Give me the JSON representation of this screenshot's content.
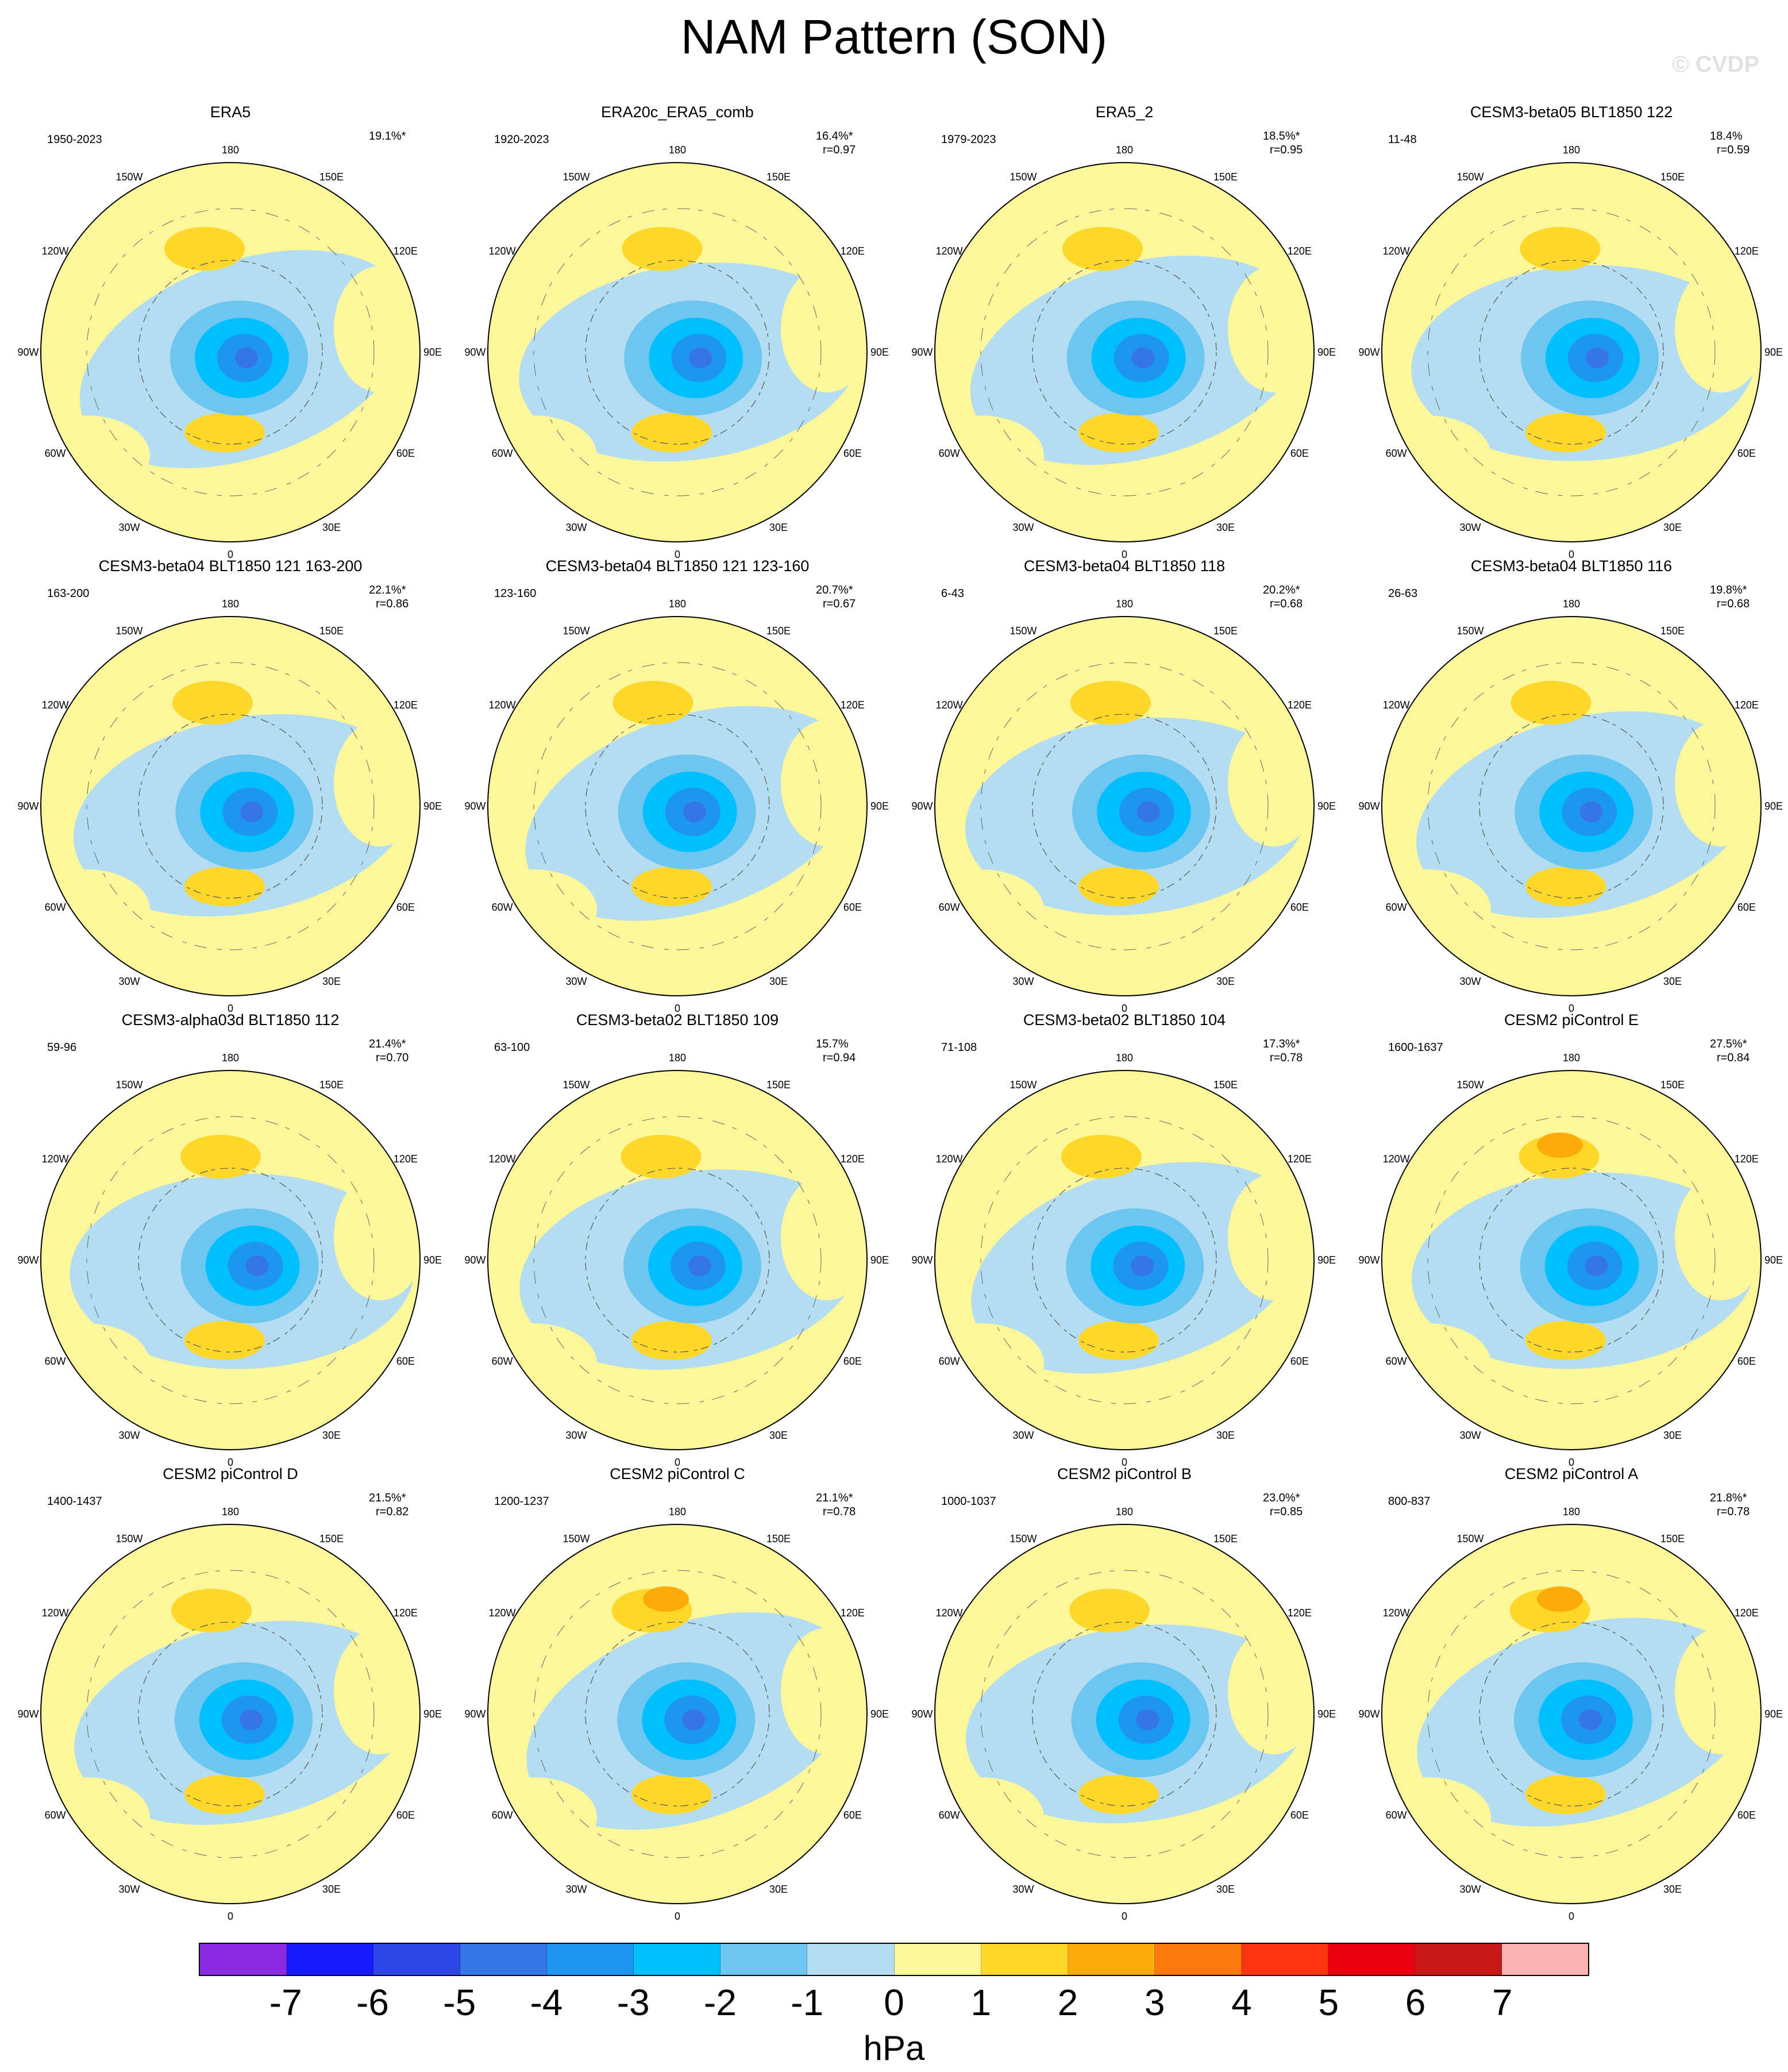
{
  "title": "NAM Pattern (SON)",
  "watermark": "© CVDP",
  "longitude_labels": [
    "180",
    "150E",
    "120E",
    "90E",
    "60E",
    "30E",
    "0",
    "30W",
    "60W",
    "90W",
    "120W",
    "150W"
  ],
  "panels": [
    {
      "title": "ERA5",
      "period": "1950-2023",
      "variance": "19.1%*",
      "r": ""
    },
    {
      "title": "ERA20c_ERA5_comb",
      "period": "1920-2023",
      "variance": "16.4%*",
      "r": "r=0.97"
    },
    {
      "title": "ERA5_2",
      "period": "1979-2023",
      "variance": "18.5%*",
      "r": "r=0.95"
    },
    {
      "title": "CESM3-beta05 BLT1850 122",
      "period": "11-48",
      "variance": "18.4%",
      "r": "r=0.59"
    },
    {
      "title": "CESM3-beta04 BLT1850 121 163-200",
      "period": "163-200",
      "variance": "22.1%*",
      "r": "r=0.86"
    },
    {
      "title": "CESM3-beta04 BLT1850 121 123-160",
      "period": "123-160",
      "variance": "20.7%*",
      "r": "r=0.67"
    },
    {
      "title": "CESM3-beta04 BLT1850 118",
      "period": "6-43",
      "variance": "20.2%*",
      "r": "r=0.68"
    },
    {
      "title": "CESM3-beta04 BLT1850 116",
      "period": "26-63",
      "variance": "19.8%*",
      "r": "r=0.68"
    },
    {
      "title": "CESM3-alpha03d BLT1850 112",
      "period": "59-96",
      "variance": "21.4%*",
      "r": "r=0.70"
    },
    {
      "title": "CESM3-beta02 BLT1850 109",
      "period": "63-100",
      "variance": "15.7%",
      "r": "r=0.94"
    },
    {
      "title": "CESM3-beta02 BLT1850 104",
      "period": "71-108",
      "variance": "17.3%*",
      "r": "r=0.78"
    },
    {
      "title": "CESM2 piControl E",
      "period": "1600-1637",
      "variance": "27.5%*",
      "r": "r=0.84"
    },
    {
      "title": "CESM2 piControl D",
      "period": "1400-1437",
      "variance": "21.5%*",
      "r": "r=0.82"
    },
    {
      "title": "CESM2 piControl C",
      "period": "1200-1237",
      "variance": "21.1%*",
      "r": "r=0.78"
    },
    {
      "title": "CESM2 piControl B",
      "period": "1000-1037",
      "variance": "23.0%*",
      "r": "r=0.85"
    },
    {
      "title": "CESM2 piControl A",
      "period": "800-837",
      "variance": "21.8%*",
      "r": "r=0.78"
    }
  ],
  "colorbar": {
    "unit": "hPa",
    "ticks": [
      "-7",
      "-6",
      "-5",
      "-4",
      "-3",
      "-2",
      "-1",
      "0",
      "1",
      "2",
      "3",
      "4",
      "5",
      "6",
      "7"
    ],
    "colors": [
      "#8a2be2",
      "#1a1aff",
      "#2e47e6",
      "#3575e8",
      "#1e96f0",
      "#00bfff",
      "#6cc6f0",
      "#b4ddf2",
      "#fdf79c",
      "#fdd82a",
      "#fcab0a",
      "#fd7a10",
      "#fd3510",
      "#e8000e",
      "#c81818",
      "#fcb4b4"
    ]
  }
}
